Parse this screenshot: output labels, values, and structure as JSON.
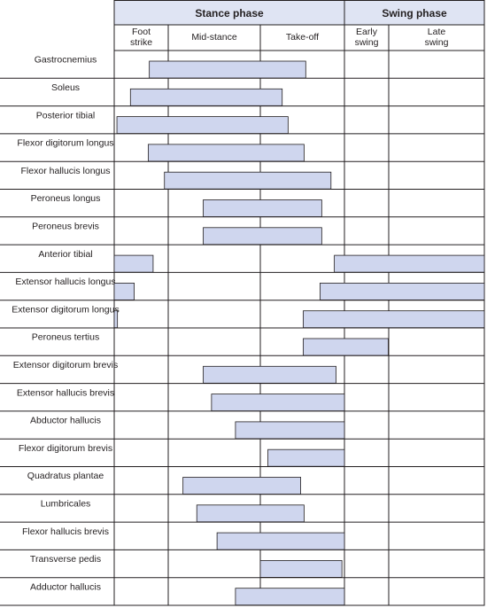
{
  "chart_data": {
    "type": "gantt",
    "time_unit": "phase",
    "phases": [
      {
        "label": "Stance phase",
        "subphases": [
          "Foot strike",
          "Mid-stance",
          "Take-off"
        ]
      },
      {
        "label": "Swing phase",
        "subphases": [
          "Early swing",
          "Late swing"
        ]
      }
    ],
    "subphase_labels": [
      [
        "Foot",
        "strike"
      ],
      [
        "Mid-stance"
      ],
      [
        "Take-off"
      ],
      [
        "Early",
        "swing"
      ],
      [
        "Late",
        "swing"
      ]
    ],
    "muscles": [
      {
        "name": "Gastrocnemius",
        "segments": [
          [
            0.65,
            2.54
          ]
        ]
      },
      {
        "name": "Soleus",
        "segments": [
          [
            0.3,
            2.26
          ]
        ]
      },
      {
        "name": "Posterior tibial",
        "segments": [
          [
            0.05,
            2.33
          ]
        ]
      },
      {
        "name": "Flexor digitorum longus",
        "segments": [
          [
            0.63,
            2.52
          ]
        ]
      },
      {
        "name": "Flexor hallucis longus",
        "segments": [
          [
            0.93,
            2.84
          ]
        ]
      },
      {
        "name": "Peroneus longus",
        "segments": [
          [
            1.38,
            2.73
          ]
        ]
      },
      {
        "name": "Peroneus brevis",
        "segments": [
          [
            1.38,
            2.73
          ]
        ]
      },
      {
        "name": "Anterior tibial",
        "segments": [
          [
            0.0,
            0.72
          ],
          [
            2.88,
            5.0
          ]
        ]
      },
      {
        "name": "Extensor hallucis longus",
        "segments": [
          [
            0.0,
            0.37
          ],
          [
            2.71,
            5.0
          ]
        ]
      },
      {
        "name": "Extensor digitorum longus",
        "segments": [
          [
            0.0,
            0.06
          ],
          [
            2.51,
            5.0
          ]
        ]
      },
      {
        "name": "Peroneus tertius",
        "segments": [
          [
            2.51,
            3.99
          ]
        ]
      },
      {
        "name": "Extensor digitorum brevis",
        "segments": [
          [
            1.38,
            2.9
          ]
        ]
      },
      {
        "name": "Extensor hallucis brevis",
        "segments": [
          [
            1.47,
            3.0
          ]
        ]
      },
      {
        "name": "Abductor hallucis",
        "segments": [
          [
            1.73,
            3.0
          ]
        ]
      },
      {
        "name": "Flexor digitorum brevis",
        "segments": [
          [
            2.09,
            3.0
          ]
        ]
      },
      {
        "name": "Quadratus plantae",
        "segments": [
          [
            1.16,
            2.48
          ]
        ]
      },
      {
        "name": "Lumbricales",
        "segments": [
          [
            1.31,
            2.52
          ]
        ]
      },
      {
        "name": "Flexor hallucis brevis",
        "segments": [
          [
            1.53,
            3.0
          ]
        ]
      },
      {
        "name": "Transverse pedis",
        "segments": [
          [
            2.0,
            2.97
          ]
        ]
      },
      {
        "name": "Adductor hallucis",
        "segments": [
          [
            1.73,
            3.0
          ]
        ]
      }
    ],
    "colors": {
      "bar_fill": "#cfd6ee",
      "bar_stroke": "#231f20",
      "grid": "#231f20",
      "header_bg": "#dfe4f3"
    }
  }
}
